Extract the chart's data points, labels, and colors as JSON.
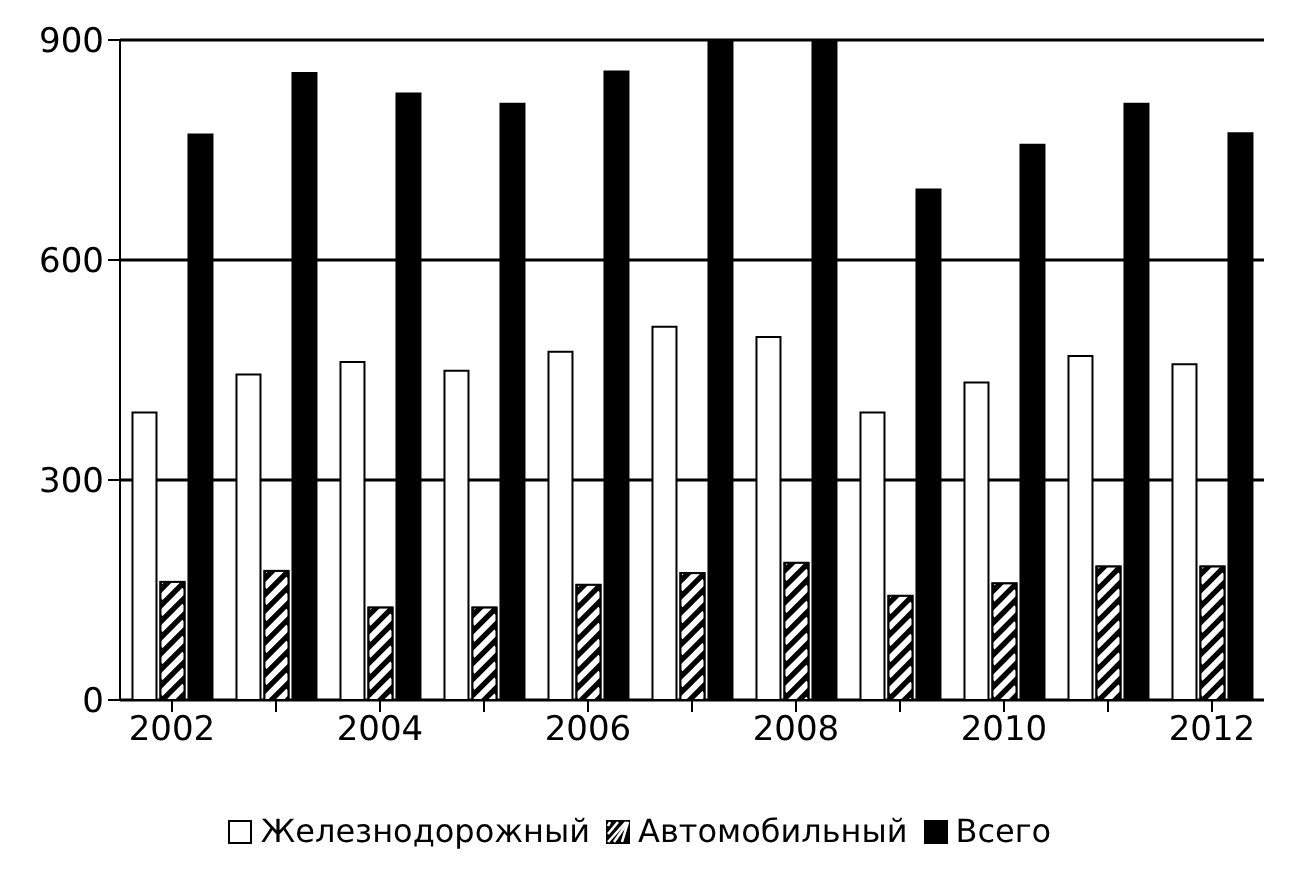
{
  "chart_data": {
    "type": "bar",
    "categories": [
      "2002",
      null,
      "2004",
      null,
      "2006",
      null,
      "2008",
      null,
      "2010",
      null,
      "2012"
    ],
    "series": [
      {
        "name": "Железнодорожный",
        "color": "#ffffff",
        "values": [
          392,
          444,
          461,
          449,
          475,
          509,
          495,
          392,
          433,
          469,
          458
        ]
      },
      {
        "name": "Автомобильный",
        "color": "#000000",
        "values": [
          161,
          176,
          126,
          126,
          157,
          173,
          187,
          142,
          159,
          182,
          182
        ]
      },
      {
        "name": "Всего",
        "color": "#000000",
        "values": [
          771,
          855,
          827,
          813,
          857,
          900,
          900,
          696,
          757,
          813,
          773
        ]
      }
    ],
    "ylim": [
      0,
      900
    ],
    "yticks": [
      0,
      300,
      600,
      900
    ],
    "grid": "y",
    "legend": "bottom"
  }
}
